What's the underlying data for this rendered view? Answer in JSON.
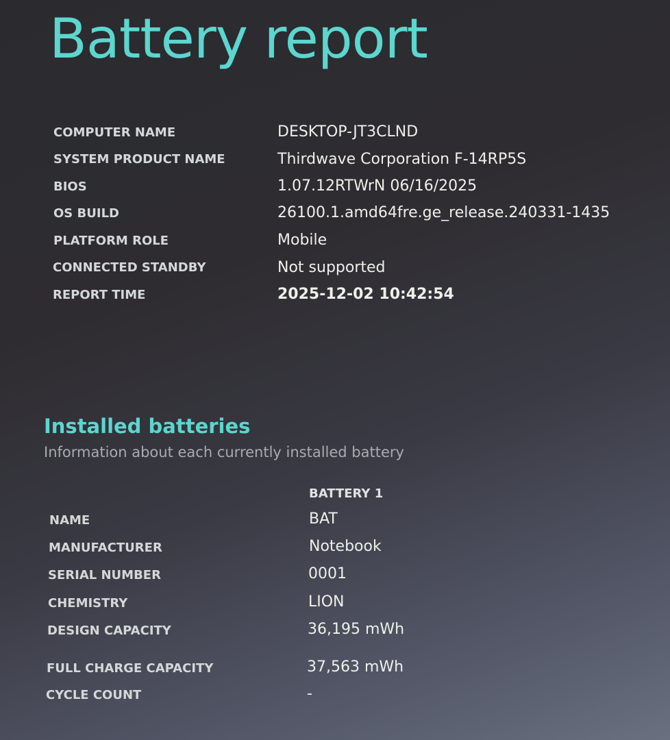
{
  "title": "Battery report",
  "system_info": [
    {
      "label": "COMPUTER NAME",
      "value": "DESKTOP-JT3CLND"
    },
    {
      "label": "SYSTEM PRODUCT NAME",
      "value": "Thirdwave Corporation F-14RP5S"
    },
    {
      "label": "BIOS",
      "value": "1.07.12RTWrN 06/16/2025"
    },
    {
      "label": "OS BUILD",
      "value": "26100.1.amd64fre.ge_release.240331-1435"
    },
    {
      "label": "PLATFORM ROLE",
      "value": "Mobile"
    },
    {
      "label": "CONNECTED STANDBY",
      "value": "Not supported"
    },
    {
      "label": "REPORT TIME",
      "value": "2025-12-02  10:42:54"
    }
  ],
  "installed_batteries": {
    "heading": "Installed batteries",
    "subtitle": "Information about each currently installed battery",
    "column_header": "BATTERY 1",
    "rows": [
      {
        "label": "NAME",
        "value": "BAT"
      },
      {
        "label": "MANUFACTURER",
        "value": "Notebook"
      },
      {
        "label": "SERIAL NUMBER",
        "value": "0001"
      },
      {
        "label": "CHEMISTRY",
        "value": "LION"
      },
      {
        "label": "DESIGN CAPACITY",
        "value": "36,195 mWh"
      },
      {
        "label": "FULL CHARGE CAPACITY",
        "value": "37,563 mWh"
      },
      {
        "label": "CYCLE COUNT",
        "value": "-"
      }
    ]
  }
}
